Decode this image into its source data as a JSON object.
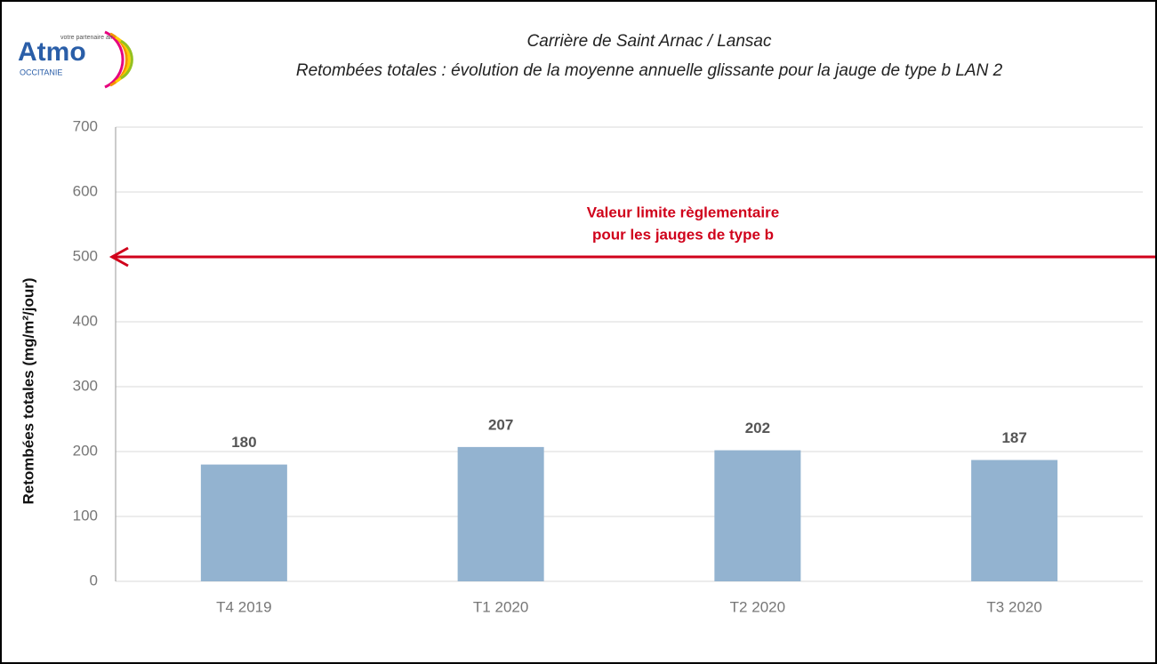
{
  "logo": {
    "name": "Atmo",
    "region": "OCCITANIE",
    "tagline": "votre partenaire air"
  },
  "chart_data": {
    "type": "bar",
    "title": "Carrière de Saint Arnac / Lansac",
    "subtitle": "Retombées totales : évolution de la moyenne annuelle glissante pour la jauge de type b LAN 2",
    "y_label": "Retombées totales (mg/m²/jour)",
    "categories": [
      "T4 2019",
      "T1 2020",
      "T2 2020",
      "T3 2020"
    ],
    "values": [
      180,
      207,
      202,
      187
    ],
    "color": "#93b3d0",
    "ylim": [
      0,
      700
    ],
    "yticks": [
      0,
      100,
      200,
      300,
      400,
      500,
      600,
      700
    ],
    "grid": true,
    "threshold": {
      "value": 500,
      "color": "#d0021b",
      "annotation": [
        "Valeur limite règlementaire",
        "pour les jauges de type b"
      ]
    }
  }
}
